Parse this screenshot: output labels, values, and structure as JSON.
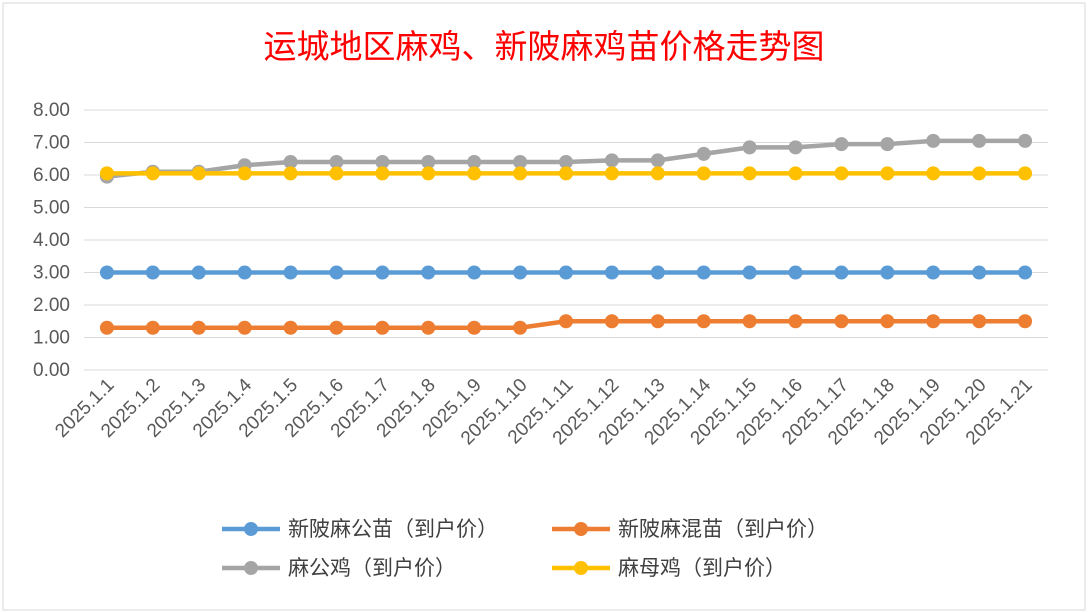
{
  "chart_data": {
    "type": "line",
    "title": "运城地区麻鸡、新陂麻鸡苗价格走势图",
    "categories": [
      "2025.1.1",
      "2025.1.2",
      "2025.1.3",
      "2025.1.4",
      "2025.1.5",
      "2025.1.6",
      "2025.1.7",
      "2025.1.8",
      "2025.1.9",
      "2025.1.10",
      "2025.1.11",
      "2025.1.12",
      "2025.1.13",
      "2025.1.14",
      "2025.1.15",
      "2025.1.16",
      "2025.1.17",
      "2025.1.18",
      "2025.1.19",
      "2025.1.20",
      "2025.1.21"
    ],
    "ylim": [
      0,
      8
    ],
    "yticks": [
      "0.00",
      "1.00",
      "2.00",
      "3.00",
      "4.00",
      "5.00",
      "6.00",
      "7.00",
      "8.00"
    ],
    "grid": true,
    "legend_position": "bottom",
    "series": [
      {
        "name": "新陂麻公苗（到户价）",
        "color": "#5b9bd5",
        "values": [
          3,
          3,
          3,
          3,
          3,
          3,
          3,
          3,
          3,
          3,
          3,
          3,
          3,
          3,
          3,
          3,
          3,
          3,
          3,
          3,
          3
        ]
      },
      {
        "name": "新陂麻混苗（到户价）",
        "color": "#ed7d31",
        "values": [
          1.3,
          1.3,
          1.3,
          1.3,
          1.3,
          1.3,
          1.3,
          1.3,
          1.3,
          1.3,
          1.5,
          1.5,
          1.5,
          1.5,
          1.5,
          1.5,
          1.5,
          1.5,
          1.5,
          1.5,
          1.5
        ]
      },
      {
        "name": "麻公鸡（到户价）",
        "color": "#a5a5a5",
        "values": [
          5.95,
          6.1,
          6.1,
          6.3,
          6.4,
          6.4,
          6.4,
          6.4,
          6.4,
          6.4,
          6.4,
          6.45,
          6.45,
          6.65,
          6.85,
          6.85,
          6.95,
          6.95,
          7.05,
          7.05,
          7.05
        ]
      },
      {
        "name": "麻母鸡（到户价）",
        "color": "#ffc000",
        "values": [
          6.05,
          6.05,
          6.05,
          6.05,
          6.05,
          6.05,
          6.05,
          6.05,
          6.05,
          6.05,
          6.05,
          6.05,
          6.05,
          6.05,
          6.05,
          6.05,
          6.05,
          6.05,
          6.05,
          6.05,
          6.05
        ]
      }
    ]
  }
}
